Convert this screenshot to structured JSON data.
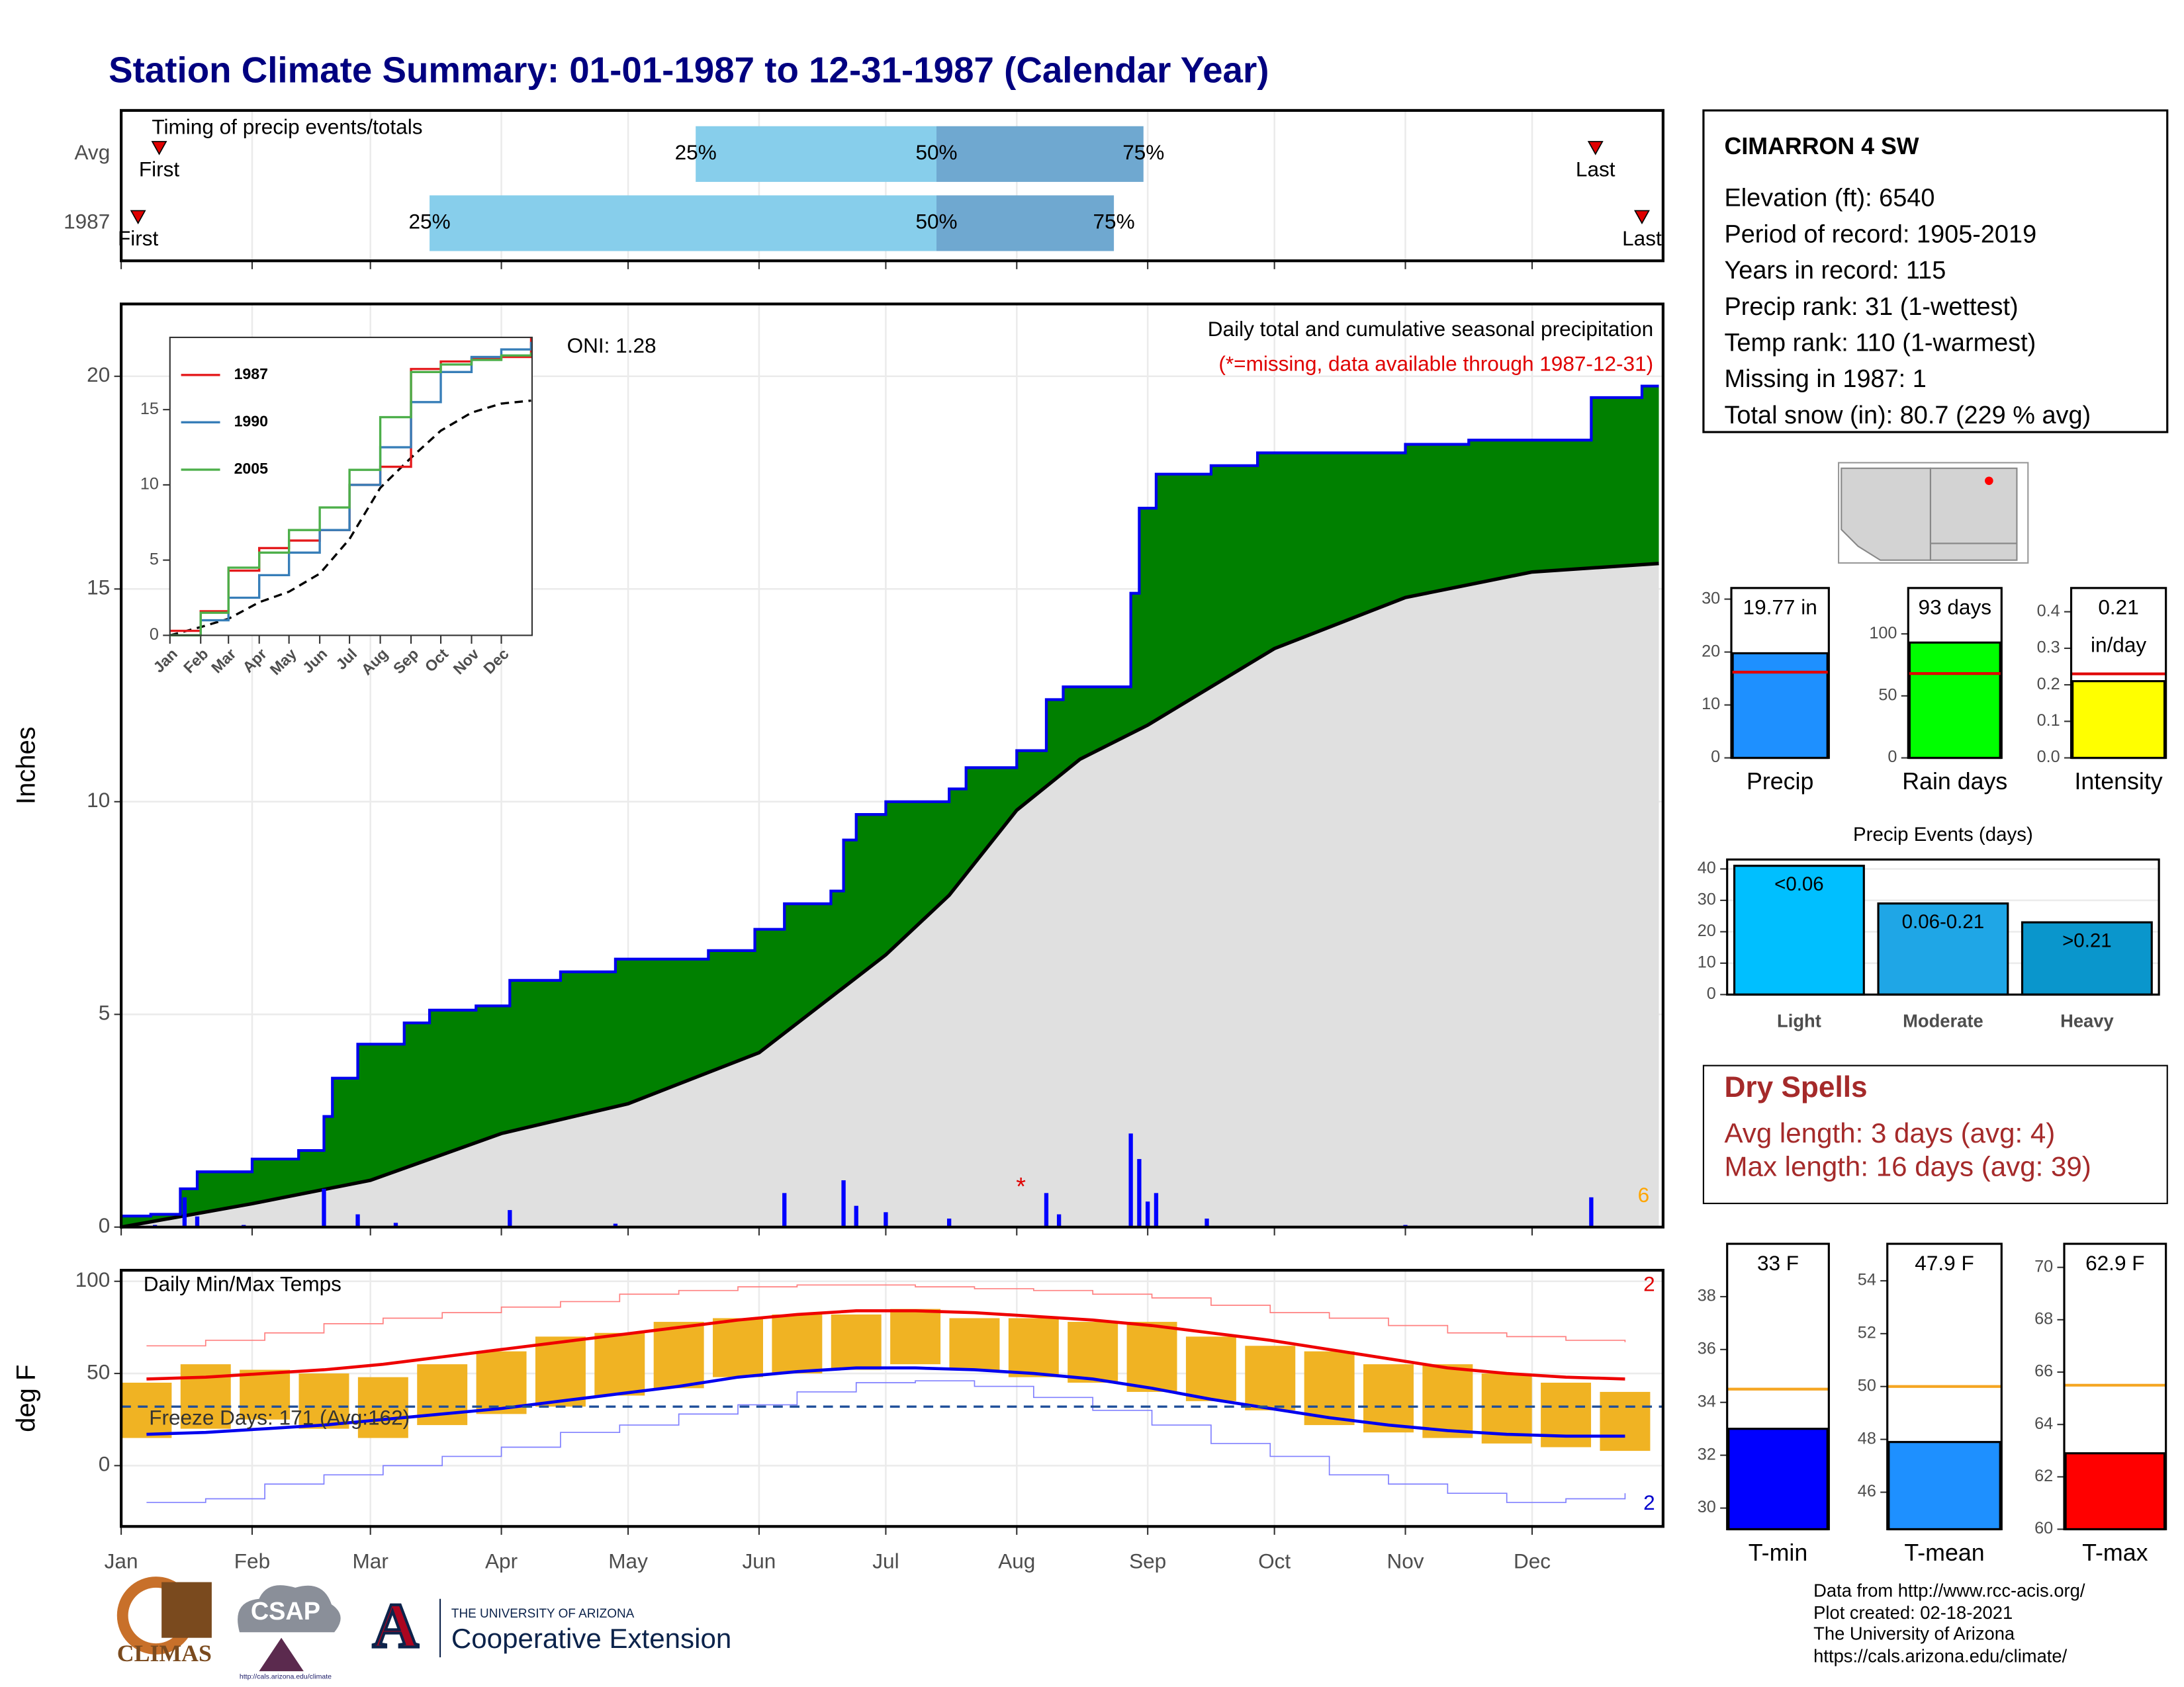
{
  "title": "Station Climate Summary: 01-01-1987 to 12-31-1987 (Calendar Year)",
  "station": {
    "name": "CIMARRON 4 SW",
    "lines": [
      "Elevation (ft): 6540",
      "Period of record: 1905-2019",
      "Years in record: 115",
      "Precip rank: 31 (1-wettest)",
      "Temp rank: 110 (1-warmest)",
      "Missing in 1987: 1",
      "Total snow (in): 80.7 (229 % avg)"
    ]
  },
  "dry_spells": {
    "title": "Dry Spells",
    "lines": [
      "Avg length: 3 days (avg: 4)",
      "Max length: 16 days (avg: 39)"
    ]
  },
  "footer": [
    "Data from http://www.rcc-acis.org/",
    "Plot created: 02-18-2021",
    "The University of Arizona",
    "https://cals.arizona.edu/climate/"
  ],
  "logos": {
    "climas": "CLIMAS",
    "csap": "CSAP",
    "csap_url": "http://cals.arizona.edu/climate",
    "university": "THE UNIVERSITY OF ARIZONA",
    "extension": "Cooperative Extension",
    "letter": "A"
  },
  "chart_data": [
    {
      "type": "timing",
      "title": "Timing of precip events/totals",
      "xlim": [
        1,
        366
      ],
      "xticks": [
        1,
        32,
        60,
        91,
        121,
        152,
        182,
        213,
        244,
        274,
        305,
        335
      ],
      "rows": [
        {
          "name": "Avg",
          "first": 10,
          "q25": 137,
          "q50": 194,
          "q75": 243,
          "last": 350
        },
        {
          "name": "1987",
          "first": 5,
          "q25": 74,
          "q50": 194,
          "q75": 236,
          "last": 361
        }
      ],
      "labels": {
        "first": "First",
        "q25": "25%",
        "q50": "50%",
        "q75": "75%",
        "last": "Last"
      },
      "colors": {
        "marker": "#e00000",
        "lower": "#87ceeb",
        "upper": "#6fa8d0"
      }
    },
    {
      "type": "area",
      "ylabel": "Inches",
      "title": "Daily total and cumulative seasonal precipitation",
      "subtitle": "(*=missing, data available through 1987-12-31)",
      "oni": "ONI: 1.28",
      "missing_mark": "*",
      "missing_x": 214,
      "count_label": "6",
      "grid": true,
      "xlim": [
        1,
        366
      ],
      "xticks": [
        1,
        32,
        60,
        91,
        121,
        152,
        182,
        213,
        244,
        274,
        305,
        335
      ],
      "ylim": [
        0,
        21.7
      ],
      "yticks": [
        0,
        5,
        10,
        15,
        20
      ],
      "cumulative": {
        "color": "#0000ee",
        "fill": "#008000",
        "x": [
          1,
          8,
          15,
          19,
          32,
          43,
          49,
          51,
          57,
          68,
          74,
          85,
          93,
          105,
          118,
          140,
          151,
          158,
          169,
          172,
          175,
          182,
          197,
          201,
          213,
          220,
          224,
          240,
          242,
          246,
          259,
          270,
          305,
          320,
          349,
          361,
          365
        ],
        "values": [
          0.26,
          0.3,
          0.9,
          1.3,
          1.6,
          1.8,
          2.6,
          3.5,
          4.3,
          4.8,
          5.1,
          5.2,
          5.8,
          6.0,
          6.3,
          6.5,
          7.0,
          7.6,
          7.9,
          9.1,
          9.7,
          10.0,
          10.3,
          10.8,
          11.2,
          12.4,
          12.7,
          14.9,
          16.9,
          17.7,
          17.9,
          18.2,
          18.4,
          18.5,
          19.5,
          19.77,
          19.77
        ]
      },
      "average": {
        "color": "#000000",
        "fill": "#e0e0e0",
        "x": [
          1,
          32,
          60,
          91,
          121,
          152,
          182,
          197,
          213,
          228,
          244,
          274,
          305,
          335,
          365
        ],
        "values": [
          0,
          0.55,
          1.1,
          2.2,
          2.9,
          4.1,
          6.4,
          7.8,
          9.8,
          11.0,
          11.8,
          13.6,
          14.8,
          15.4,
          15.6
        ]
      },
      "daily": {
        "color": "#0000ff",
        "x": [
          9,
          16,
          19,
          30,
          49,
          57,
          66,
          93,
          118,
          158,
          172,
          175,
          182,
          197,
          220,
          223,
          240,
          242,
          244,
          246,
          258,
          305,
          349
        ],
        "values": [
          0.05,
          0.7,
          0.25,
          0.05,
          0.9,
          0.3,
          0.1,
          0.4,
          0.08,
          0.8,
          1.1,
          0.5,
          0.35,
          0.2,
          0.8,
          0.3,
          2.2,
          1.6,
          0.6,
          0.8,
          0.2,
          0.05,
          0.7
        ]
      }
    },
    {
      "type": "line",
      "xlim": [
        1,
        366
      ],
      "ylim": [
        0,
        19.8
      ],
      "yticks": [
        0,
        5,
        10,
        15
      ],
      "xticks": [
        {
          "value": 1,
          "label": "Jan"
        },
        {
          "value": 32,
          "label": "Feb"
        },
        {
          "value": 60,
          "label": "Mar"
        },
        {
          "value": 91,
          "label": "Apr"
        },
        {
          "value": 121,
          "label": "May"
        },
        {
          "value": 152,
          "label": "Jun"
        },
        {
          "value": 182,
          "label": "Jul"
        },
        {
          "value": 213,
          "label": "Aug"
        },
        {
          "value": 244,
          "label": "Sep"
        },
        {
          "value": 274,
          "label": "Oct"
        },
        {
          "value": 305,
          "label": "Nov"
        },
        {
          "value": 335,
          "label": "Dec"
        }
      ],
      "x": [
        1,
        32,
        60,
        91,
        121,
        152,
        182,
        213,
        244,
        274,
        305,
        335,
        365
      ],
      "series": [
        {
          "name": "1987",
          "color": "#e41a1c",
          "values": [
            0.3,
            1.6,
            4.3,
            5.8,
            6.3,
            7.0,
            10.0,
            11.2,
            17.7,
            18.2,
            18.4,
            18.5,
            19.77
          ]
        },
        {
          "name": "1990",
          "color": "#377eb8",
          "values": [
            0,
            1.0,
            2.5,
            4.0,
            5.5,
            7.0,
            10.0,
            12.5,
            15.5,
            17.5,
            18.5,
            19.0,
            19.5
          ]
        },
        {
          "name": "2005",
          "color": "#4daf4a",
          "values": [
            0,
            1.5,
            4.5,
            5.5,
            7.0,
            8.5,
            11.0,
            14.5,
            17.5,
            18.0,
            18.3,
            18.6,
            18.8
          ]
        }
      ],
      "average": {
        "color": "#000000",
        "values": [
          0,
          0.55,
          1.1,
          2.2,
          2.9,
          4.1,
          6.4,
          9.8,
          11.8,
          13.6,
          14.8,
          15.4,
          15.6
        ]
      }
    },
    {
      "type": "temperature",
      "title": "Daily Min/Max Temps",
      "ylabel": "deg F",
      "freeze_label": "Freeze Days: 171 (Avg:162)",
      "freeze_line": 32,
      "freeze_color": "#1f4e99",
      "high_count": 2,
      "low_count": 2,
      "grid": true,
      "xlim": [
        1,
        366
      ],
      "ylim": [
        -33,
        106
      ],
      "yticks": [
        0,
        50,
        100
      ],
      "xticks": [
        {
          "value": 1,
          "label": "Jan"
        },
        {
          "value": 32,
          "label": "Feb"
        },
        {
          "value": 60,
          "label": "Mar"
        },
        {
          "value": 91,
          "label": "Apr"
        },
        {
          "value": 121,
          "label": "May"
        },
        {
          "value": 152,
          "label": "Jun"
        },
        {
          "value": 182,
          "label": "Jul"
        },
        {
          "value": 213,
          "label": "Aug"
        },
        {
          "value": 244,
          "label": "Sep"
        },
        {
          "value": 274,
          "label": "Oct"
        },
        {
          "value": 305,
          "label": "Nov"
        },
        {
          "value": 335,
          "label": "Dec"
        }
      ],
      "x": [
        7,
        21,
        35,
        49,
        63,
        77,
        91,
        105,
        119,
        133,
        147,
        161,
        175,
        189,
        203,
        217,
        231,
        245,
        259,
        273,
        287,
        301,
        315,
        329,
        343,
        357
      ],
      "bars": {
        "color": "#f0b323",
        "low": [
          15,
          20,
          25,
          20,
          15,
          22,
          28,
          32,
          38,
          42,
          48,
          50,
          52,
          55,
          52,
          48,
          45,
          40,
          35,
          30,
          22,
          18,
          15,
          12,
          10,
          8
        ],
        "high": [
          45,
          55,
          52,
          50,
          48,
          55,
          62,
          70,
          72,
          78,
          80,
          82,
          82,
          85,
          80,
          80,
          78,
          78,
          70,
          65,
          62,
          55,
          55,
          50,
          45,
          40
        ]
      },
      "record_high": {
        "color": "#ff8080",
        "values": [
          65,
          68,
          72,
          77,
          80,
          83,
          86,
          89,
          93,
          95,
          97,
          98,
          98,
          97,
          96,
          95,
          93,
          91,
          87,
          83,
          80,
          76,
          72,
          70,
          68,
          67
        ]
      },
      "avg_high": {
        "color": "#ee0000",
        "values": [
          47,
          48,
          50,
          52,
          55,
          59,
          63,
          67,
          71,
          75,
          79,
          82,
          84,
          84,
          83,
          81,
          79,
          76,
          72,
          68,
          63,
          58,
          53,
          50,
          48,
          47
        ]
      },
      "avg_low": {
        "color": "#0000ee",
        "values": [
          17,
          18,
          20,
          22,
          25,
          28,
          31,
          35,
          39,
          43,
          48,
          51,
          53,
          53,
          52,
          50,
          47,
          42,
          36,
          31,
          26,
          22,
          19,
          17,
          16,
          16
        ]
      },
      "record_low": {
        "color": "#8080ff",
        "values": [
          -20,
          -18,
          -10,
          -5,
          0,
          5,
          10,
          18,
          22,
          28,
          33,
          40,
          45,
          46,
          43,
          37,
          30,
          22,
          12,
          5,
          -5,
          -10,
          -15,
          -20,
          -18,
          -15
        ]
      }
    },
    {
      "type": "bar",
      "categories": [
        "Precip"
      ],
      "values": [
        19.77
      ],
      "value_labels": [
        "19.77 in"
      ],
      "average": 16.2,
      "average_color": "#e00000",
      "color": "#1e90ff",
      "ylim": [
        0,
        32.1
      ],
      "yticks": [
        0,
        10,
        20,
        30
      ]
    },
    {
      "type": "bar",
      "categories": [
        "Rain days"
      ],
      "values": [
        93
      ],
      "value_labels": [
        "93 days"
      ],
      "average": 68,
      "average_color": "#e00000",
      "color": "#00ff00",
      "ylim": [
        0,
        137
      ],
      "yticks": [
        0,
        50,
        100
      ]
    },
    {
      "type": "bar",
      "categories": [
        "Intensity"
      ],
      "values": [
        0.21
      ],
      "value_labels": [
        "0.21"
      ],
      "unit": "in/day",
      "average": 0.23,
      "average_color": "#e00000",
      "color": "#ffff00",
      "ylim": [
        0,
        0.465
      ],
      "yticks": [
        {
          "value": 0,
          "label": "0.0"
        },
        0.1,
        0.2,
        0.3,
        0.4
      ]
    },
    {
      "type": "bar",
      "title": "Precip Events (days)",
      "categories": [
        "Light",
        "Moderate",
        "Heavy"
      ],
      "values": [
        41,
        29,
        23
      ],
      "thresholds": [
        "<0.06",
        "0.06-0.21",
        ">0.21"
      ],
      "colors": [
        "#00bfff",
        "#1fa6e6",
        "#0a96cc"
      ],
      "ylim": [
        0,
        43
      ],
      "yticks": [
        0,
        10,
        20,
        30,
        40
      ],
      "grid": true
    },
    {
      "type": "bar",
      "categories": [
        "T-min"
      ],
      "values": [
        33
      ],
      "value_labels": [
        "33 F"
      ],
      "average": 34.5,
      "average_color": "#f5a623",
      "color": "#0000ff",
      "ylim": [
        29.2,
        40
      ],
      "yticks": [
        30,
        32,
        34,
        36,
        38
      ]
    },
    {
      "type": "bar",
      "categories": [
        "T-mean"
      ],
      "values": [
        47.9
      ],
      "value_labels": [
        "47.9 F"
      ],
      "average": 50,
      "average_color": "#f5a623",
      "color": "#1e90ff",
      "ylim": [
        44.6,
        55.4
      ],
      "yticks": [
        46,
        48,
        50,
        52,
        54
      ]
    },
    {
      "type": "bar",
      "categories": [
        "T-max"
      ],
      "values": [
        62.9
      ],
      "value_labels": [
        "62.9 F"
      ],
      "average": 65.5,
      "average_color": "#f5a623",
      "color": "#ff0000",
      "ylim": [
        60,
        70.9
      ],
      "yticks": [
        60,
        62,
        64,
        66,
        68,
        70
      ]
    }
  ]
}
